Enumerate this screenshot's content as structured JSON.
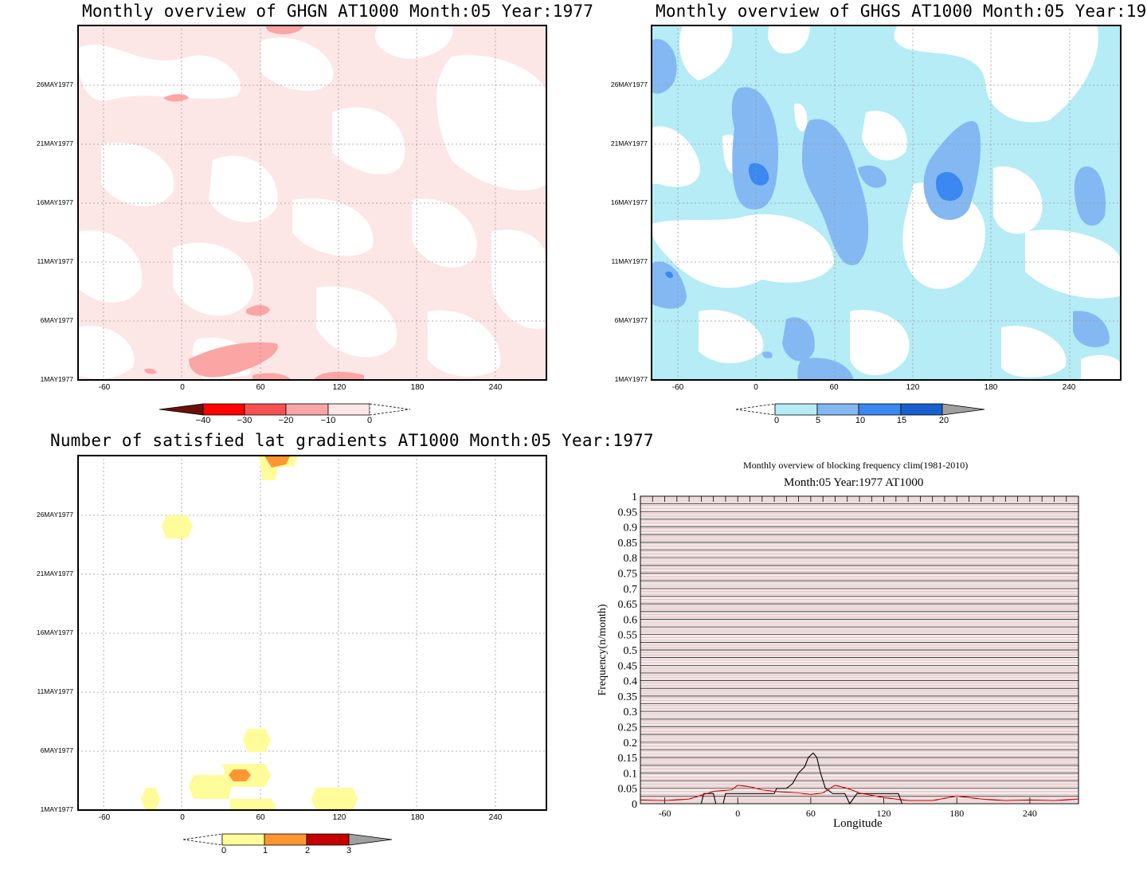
{
  "panels": {
    "ghgn": {
      "title": "Monthly overview of GHGN AT1000 Month:05 Year:1977",
      "colorbar_labels": [
        "−40",
        "−30",
        "−20",
        "−10",
        "0"
      ],
      "colors": [
        "#6b0f0a",
        "#ff0000",
        "#f75050",
        "#fba5a5",
        "#fde6e6"
      ]
    },
    "ghgs": {
      "title": "Monthly overview of GHGS AT1000 Month:05 Year:1977",
      "colorbar_labels": [
        "0",
        "5",
        "10",
        "15",
        "20"
      ],
      "colors": [
        "#b5ecf5",
        "#84b8f2",
        "#3a88f0",
        "#1860cf",
        "#a0a0a0"
      ]
    },
    "lat": {
      "title": "Number of satisfied lat gradients AT1000 Month:05 Year:1977",
      "colorbar_labels": [
        "0",
        "1",
        "2",
        "3"
      ],
      "colors": [
        "#fffc99",
        "#fe9632",
        "#c40000",
        "#a0a0a0"
      ]
    },
    "freq": {
      "title": "Monthly overview of blocking frequency clim(1981-2010)",
      "subtitle": "Month:05 Year:1977  AT1000",
      "xlabel": "Longitude",
      "ylabel": "Frequency(n/month)"
    }
  },
  "map_axes": {
    "y_ticks": [
      "26MAY1977",
      "21MAY1977",
      "16MAY1977",
      "11MAY1977",
      "6MAY1977",
      "1MAY1977"
    ],
    "x_ticks": [
      "-60",
      "0",
      "60",
      "120",
      "180",
      "240"
    ]
  },
  "chart_data": [
    {
      "type": "heatmap",
      "title": "Monthly overview of GHGN AT1000 Month:05 Year:1977",
      "x_ticks": [
        -60,
        0,
        60,
        120,
        180,
        240
      ],
      "y_ticks": [
        "1MAY1977",
        "6MAY1977",
        "11MAY1977",
        "16MAY1977",
        "21MAY1977",
        "26MAY1977"
      ],
      "xlim": [
        -80,
        280
      ],
      "colorbar": [
        -40,
        -30,
        -20,
        -10,
        0
      ],
      "fields": [
        {
          "range": "-10..0",
          "coverage": "most of domain",
          "color": "#fde6e6"
        },
        {
          "range": "-20..-10",
          "lon": 10,
          "date": "2MAY1977",
          "color": "#fba5a5"
        },
        {
          "range": "-20..-10",
          "lon": 60,
          "date": "5MAY1977",
          "color": "#fba5a5"
        },
        {
          "range": "-20..-10",
          "lon": 115,
          "date": "1MAY1977",
          "color": "#fba5a5"
        },
        {
          "range": "-20..-10",
          "lon": 60,
          "date": "1MAY1977",
          "color": "#fba5a5"
        },
        {
          "range": "-20..-10",
          "lon": -5,
          "date": "27MAY1977",
          "color": "#fba5a5"
        },
        {
          "range": "-20..-10",
          "lon": 75,
          "date": "31MAY1977",
          "color": "#fba5a5"
        }
      ]
    },
    {
      "type": "heatmap",
      "title": "Monthly overview of GHGS AT1000 Month:05 Year:1977",
      "x_ticks": [
        -60,
        0,
        60,
        120,
        180,
        240
      ],
      "y_ticks": [
        "1MAY1977",
        "6MAY1977",
        "11MAY1977",
        "16MAY1977",
        "21MAY1977",
        "26MAY1977"
      ],
      "xlim": [
        -80,
        280
      ],
      "colorbar": [
        0,
        5,
        10,
        15,
        20
      ],
      "fields": [
        {
          "range": "0..5",
          "coverage": "most of domain",
          "color": "#b5ecf5"
        },
        {
          "range": "5..10",
          "lon": 0,
          "date": "20MAY1977",
          "color": "#84b8f2"
        },
        {
          "range": "5..10",
          "lon": 60,
          "date": "17MAY1977",
          "color": "#84b8f2"
        },
        {
          "range": "5..10",
          "lon": 150,
          "date": "18MAY1977",
          "color": "#84b8f2"
        },
        {
          "range": "5..10",
          "lon": 50,
          "date": "4MAY1977",
          "color": "#84b8f2"
        },
        {
          "range": "5..10",
          "lon": -65,
          "date": "10MAY1977",
          "color": "#84b8f2"
        },
        {
          "range": "5..10",
          "lon": 250,
          "date": "17MAY1977",
          "color": "#84b8f2"
        },
        {
          "range": "5..10",
          "lon": 255,
          "date": "5MAY1977",
          "color": "#84b8f2"
        },
        {
          "range": "10..15",
          "lon": 5,
          "date": "18MAY1977",
          "color": "#3a88f0"
        },
        {
          "range": "10..15",
          "lon": 150,
          "date": "16MAY1977",
          "color": "#3a88f0"
        },
        {
          "range": "10..15",
          "lon": 60,
          "date": "1MAY1977",
          "color": "#3a88f0"
        }
      ]
    },
    {
      "type": "heatmap",
      "title": "Number of satisfied lat gradients AT1000 Month:05 Year:1977",
      "x_ticks": [
        -60,
        0,
        60,
        120,
        180,
        240
      ],
      "y_ticks": [
        "1MAY1977",
        "6MAY1977",
        "11MAY1977",
        "16MAY1977",
        "21MAY1977",
        "26MAY1977"
      ],
      "xlim": [
        -80,
        280
      ],
      "colorbar": [
        0,
        1,
        2,
        3
      ],
      "cells": [
        {
          "lon": 67,
          "date": "31MAY1977",
          "value": 2
        },
        {
          "lon": 67,
          "date": "30MAY1977",
          "value": 1
        },
        {
          "lon": -5,
          "date": "25MAY1977",
          "value": 1
        },
        {
          "lon": 60,
          "date": "7MAY1977",
          "value": 1
        },
        {
          "lon": 45,
          "date": "4MAY1977",
          "value": 2
        },
        {
          "lon": 45,
          "date": "4MAY1977",
          "value": 1
        },
        {
          "lon": 15,
          "date": "2MAY1977",
          "value": 1
        },
        {
          "lon": -25,
          "date": "1MAY1977",
          "value": 1
        },
        {
          "lon": 55,
          "date": "1MAY1977",
          "value": 1
        },
        {
          "lon": 118,
          "date": "1MAY1977",
          "value": 1
        }
      ]
    },
    {
      "type": "line",
      "title": "Monthly overview of blocking frequency clim(1981-2010)",
      "subtitle": "Month:05 Year:1977  AT1000",
      "xlabel": "Longitude",
      "ylabel": "Frequency(n/month)",
      "xlim": [
        -80,
        280
      ],
      "ylim": [
        0,
        1
      ],
      "x_ticks": [
        -60,
        0,
        60,
        120,
        180,
        240
      ],
      "y_ticks": [
        0,
        0.05,
        0.1,
        0.15,
        0.2,
        0.25,
        0.3,
        0.35,
        0.4,
        0.45,
        0.5,
        0.55,
        0.6,
        0.65,
        0.7,
        0.75,
        0.8,
        0.85,
        0.9,
        0.95,
        1
      ],
      "series": [
        {
          "color": "#000000",
          "x": [
            -80,
            -30,
            -28,
            -20,
            -18,
            -12,
            -10,
            0,
            30,
            32,
            40,
            45,
            50,
            55,
            58,
            62,
            65,
            68,
            72,
            78,
            88,
            92,
            98,
            105,
            132,
            135,
            280
          ],
          "y": [
            0,
            0,
            0.033,
            0.033,
            0,
            0,
            0.033,
            0.033,
            0.033,
            0.05,
            0.05,
            0.065,
            0.1,
            0.12,
            0.15,
            0.165,
            0.15,
            0.1,
            0.05,
            0.033,
            0.033,
            0,
            0.033,
            0.033,
            0.033,
            0,
            0
          ]
        },
        {
          "color": "#d40000",
          "x": [
            -80,
            -60,
            -40,
            -20,
            -5,
            0,
            10,
            20,
            30,
            50,
            60,
            70,
            80,
            90,
            100,
            120,
            140,
            160,
            180,
            200,
            220,
            240,
            260,
            280
          ],
          "y": [
            0.012,
            0.01,
            0.015,
            0.04,
            0.045,
            0.06,
            0.055,
            0.045,
            0.04,
            0.035,
            0.03,
            0.035,
            0.06,
            0.05,
            0.035,
            0.02,
            0.01,
            0.01,
            0.025,
            0.015,
            0.01,
            0.012,
            0.01,
            0.015
          ]
        }
      ]
    }
  ]
}
